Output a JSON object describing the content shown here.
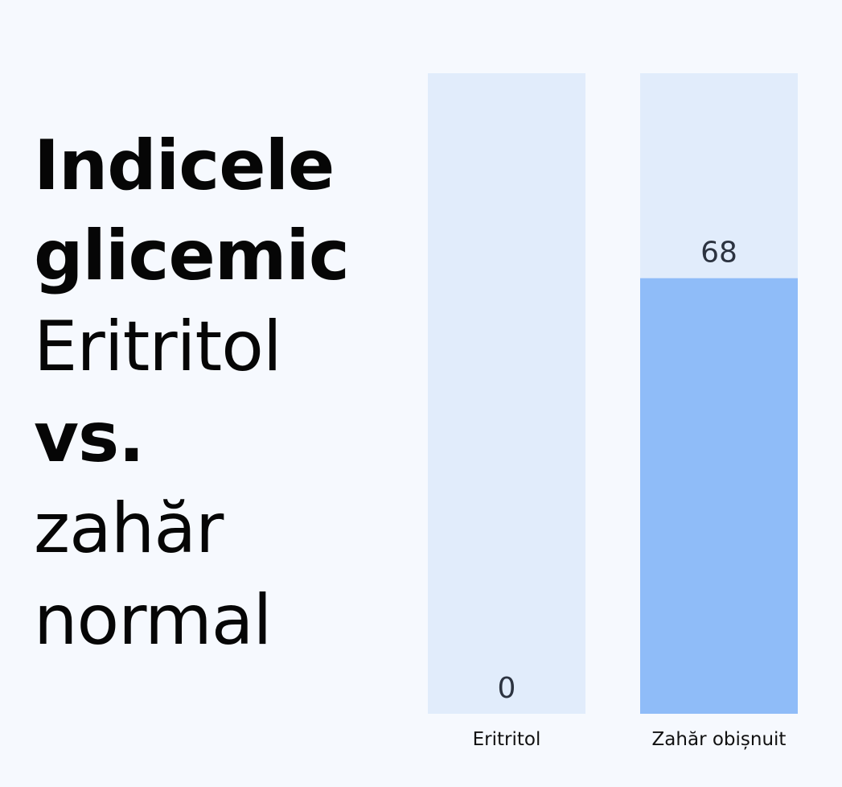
{
  "title": {
    "line1": "Indicele",
    "line2": "glicemic",
    "line3": "Eritritol",
    "line4": "vs.",
    "line5": "zahăr",
    "line6": "normal"
  },
  "colors": {
    "background": "#f6f9fe",
    "track": "#e1ecfb",
    "bar": "#8fbcf8",
    "value_text": "#2c3340"
  },
  "chart_data": {
    "type": "bar",
    "title": "Indicele glicemic Eritritol vs. zahăr normal",
    "categories": [
      "Eritritol",
      "Zahăr obișnuit"
    ],
    "values": [
      0,
      68
    ],
    "value_labels": [
      "0",
      "68"
    ],
    "ylim": [
      0,
      100
    ],
    "grid": false,
    "legend": "none"
  }
}
